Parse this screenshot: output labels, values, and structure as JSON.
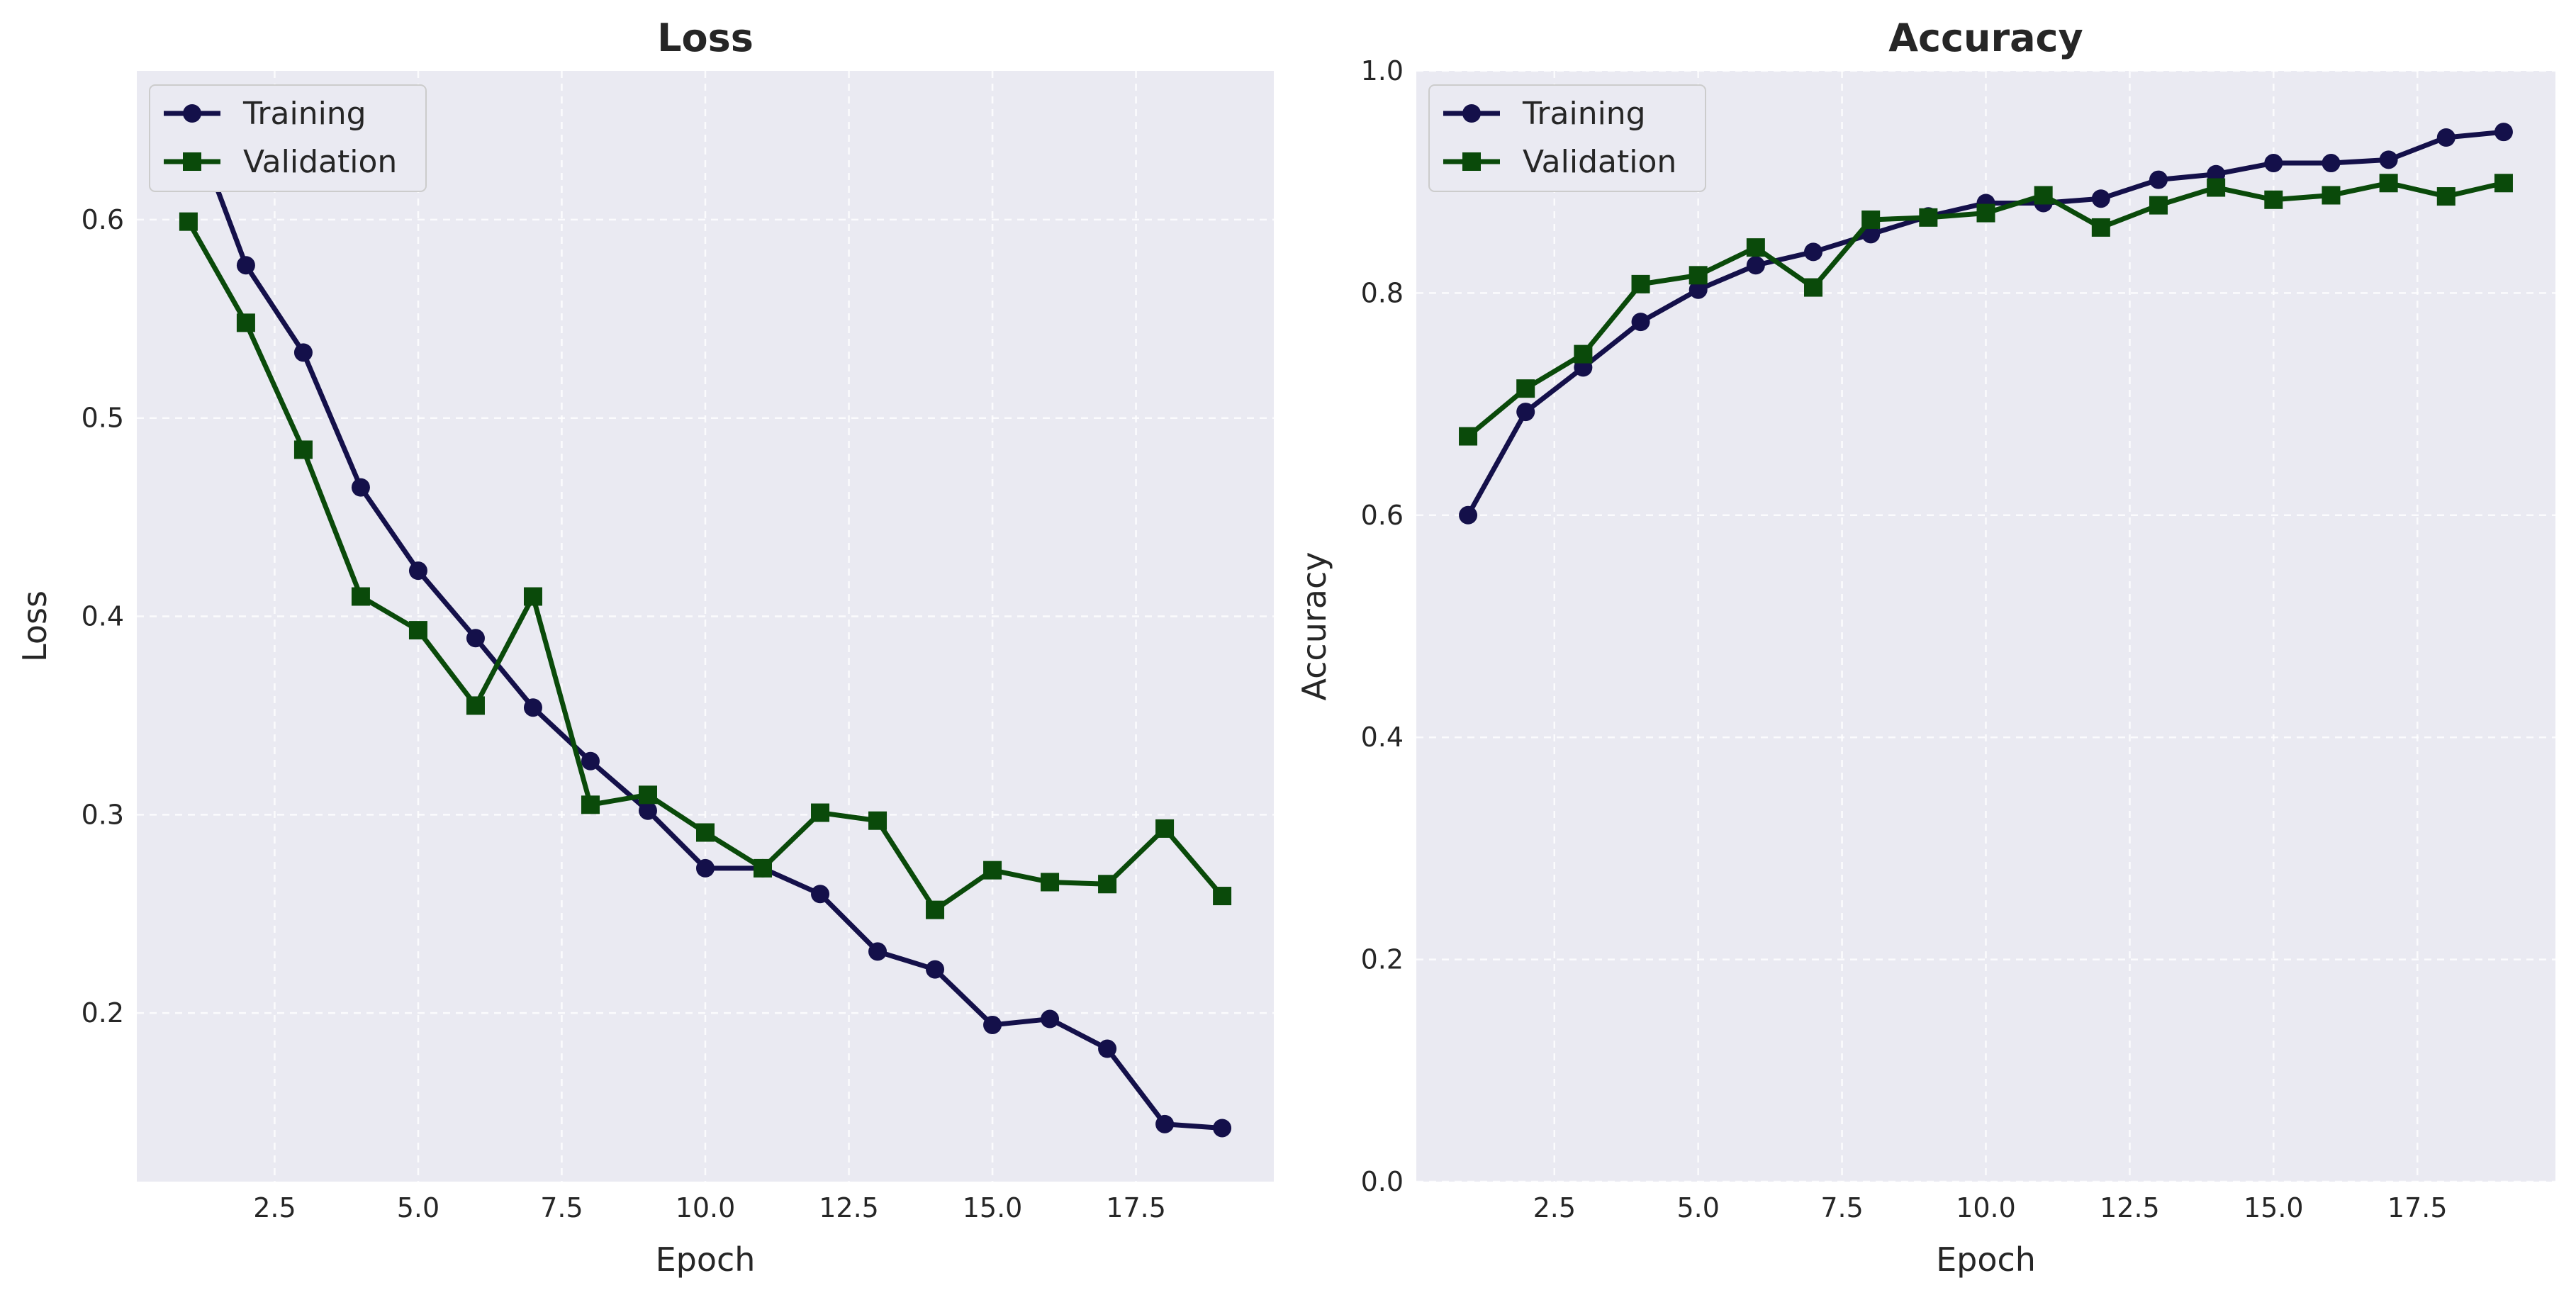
{
  "chart_data": [
    {
      "type": "line",
      "title": "Loss",
      "xlabel": "Epoch",
      "ylabel": "Loss",
      "xlim": [
        0.1,
        19.9
      ],
      "ylim": [
        0.115,
        0.675
      ],
      "xticks": [
        2.5,
        5.0,
        7.5,
        10.0,
        12.5,
        15.0,
        17.5
      ],
      "xtick_labels": [
        "2.5",
        "5.0",
        "7.5",
        "10.0",
        "12.5",
        "15.0",
        "17.5"
      ],
      "yticks": [
        0.2,
        0.3,
        0.4,
        0.5,
        0.6
      ],
      "ytick_labels": [
        "0.2",
        "0.3",
        "0.4",
        "0.5",
        "0.6"
      ],
      "grid": true,
      "legend_position": "upper-left",
      "x": [
        1,
        2,
        3,
        4,
        5,
        6,
        7,
        8,
        9,
        10,
        11,
        12,
        13,
        14,
        15,
        16,
        17,
        18,
        19
      ],
      "series": [
        {
          "name": "Training",
          "marker": "circle",
          "color": "#14104a",
          "values": [
            0.654,
            0.577,
            0.533,
            0.465,
            0.423,
            0.389,
            0.354,
            0.327,
            0.302,
            0.273,
            0.273,
            0.26,
            0.231,
            0.222,
            0.194,
            0.197,
            0.182,
            0.144,
            0.142
          ]
        },
        {
          "name": "Validation",
          "marker": "square",
          "color": "#0a4a0a",
          "values": [
            0.599,
            0.548,
            0.484,
            0.41,
            0.393,
            0.355,
            0.41,
            0.305,
            0.31,
            0.291,
            0.273,
            0.301,
            0.297,
            0.252,
            0.272,
            0.266,
            0.265,
            0.293,
            0.259
          ]
        }
      ]
    },
    {
      "type": "line",
      "title": "Accuracy",
      "xlabel": "Epoch",
      "ylabel": "Accuracy",
      "xlim": [
        0.1,
        19.9
      ],
      "ylim": [
        0.0,
        1.0
      ],
      "xticks": [
        2.5,
        5.0,
        7.5,
        10.0,
        12.5,
        15.0,
        17.5
      ],
      "xtick_labels": [
        "2.5",
        "5.0",
        "7.5",
        "10.0",
        "12.5",
        "15.0",
        "17.5"
      ],
      "yticks": [
        0.0,
        0.2,
        0.4,
        0.6,
        0.8,
        1.0
      ],
      "ytick_labels": [
        "0.0",
        "0.2",
        "0.4",
        "0.6",
        "0.8",
        "1.0"
      ],
      "grid": true,
      "legend_position": "upper-left",
      "x": [
        1,
        2,
        3,
        4,
        5,
        6,
        7,
        8,
        9,
        10,
        11,
        12,
        13,
        14,
        15,
        16,
        17,
        18,
        19
      ],
      "series": [
        {
          "name": "Training",
          "marker": "circle",
          "color": "#14104a",
          "values": [
            0.6,
            0.693,
            0.733,
            0.774,
            0.803,
            0.825,
            0.837,
            0.853,
            0.869,
            0.881,
            0.881,
            0.885,
            0.902,
            0.907,
            0.917,
            0.917,
            0.92,
            0.94,
            0.945
          ]
        },
        {
          "name": "Validation",
          "marker": "square",
          "color": "#0a4a0a",
          "values": [
            0.671,
            0.714,
            0.745,
            0.808,
            0.816,
            0.841,
            0.805,
            0.866,
            0.868,
            0.872,
            0.888,
            0.859,
            0.879,
            0.895,
            0.884,
            0.888,
            0.899,
            0.887,
            0.899
          ]
        }
      ]
    }
  ]
}
